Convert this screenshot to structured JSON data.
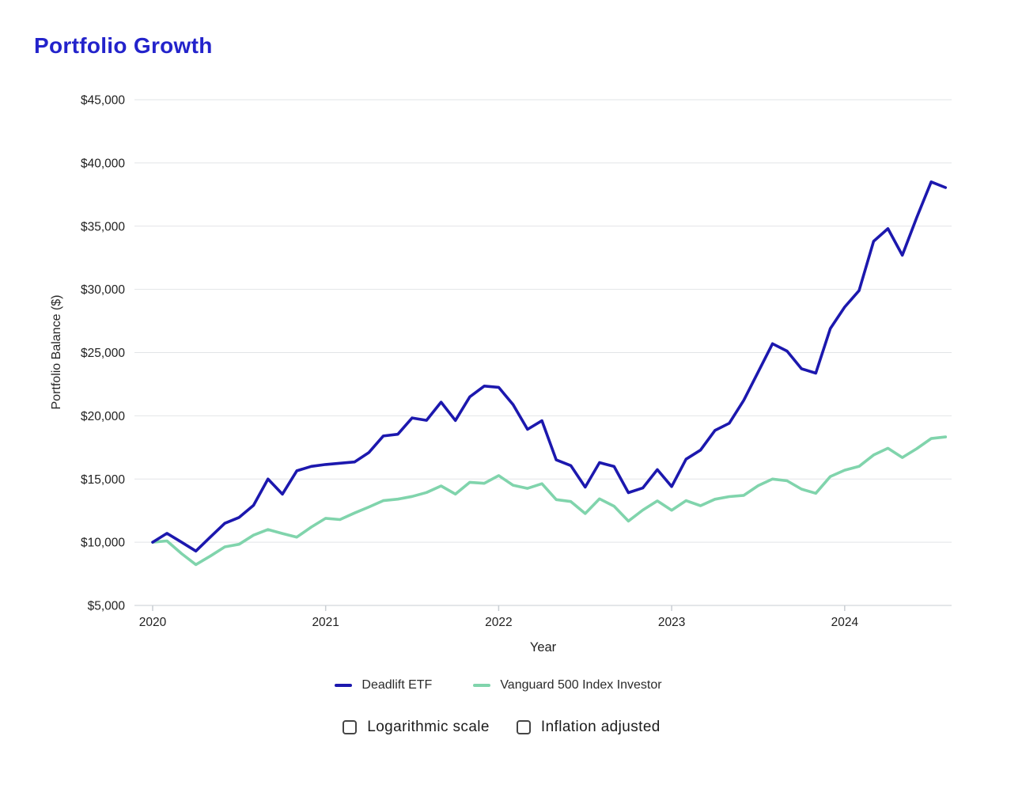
{
  "title": "Portfolio Growth",
  "colors": {
    "title": "#2323cb",
    "grid": "#e2e4e7",
    "axis": "#c9ced3",
    "tick_text": "#212121"
  },
  "legend": {
    "items": [
      {
        "label": "Deadlift ETF",
        "color": "#1c18ae"
      },
      {
        "label": "Vanguard 500 Index Investor",
        "color": "#80d4ac"
      }
    ]
  },
  "controls": {
    "items": [
      {
        "label": "Logarithmic scale",
        "checked": false
      },
      {
        "label": "Inflation adjusted",
        "checked": false
      }
    ]
  },
  "chart_data": {
    "type": "line",
    "title": "Portfolio Growth",
    "xlabel": "Year",
    "ylabel": "Portfolio Balance ($)",
    "xlim": [
      2019.895,
      2024.618
    ],
    "ylim": [
      5000,
      45000
    ],
    "grid": "horizontal",
    "legend_position": "bottom",
    "yticks": [
      {
        "value": 5000,
        "label": "$5,000"
      },
      {
        "value": 10000,
        "label": "$10,000"
      },
      {
        "value": 15000,
        "label": "$15,000"
      },
      {
        "value": 20000,
        "label": "$20,000"
      },
      {
        "value": 25000,
        "label": "$25,000"
      },
      {
        "value": 30000,
        "label": "$30,000"
      },
      {
        "value": 35000,
        "label": "$35,000"
      },
      {
        "value": 40000,
        "label": "$40,000"
      },
      {
        "value": 45000,
        "label": "$45,000"
      }
    ],
    "xticks": [
      {
        "value": 2020,
        "label": "2020"
      },
      {
        "value": 2021,
        "label": "2021"
      },
      {
        "value": 2022,
        "label": "2022"
      },
      {
        "value": 2023,
        "label": "2023"
      },
      {
        "value": 2024,
        "label": "2024"
      }
    ],
    "x": [
      2020.0,
      2020.083,
      2020.167,
      2020.25,
      2020.333,
      2020.417,
      2020.5,
      2020.583,
      2020.667,
      2020.75,
      2020.833,
      2020.917,
      2021.0,
      2021.083,
      2021.167,
      2021.25,
      2021.333,
      2021.417,
      2021.5,
      2021.583,
      2021.667,
      2021.75,
      2021.833,
      2021.917,
      2022.0,
      2022.083,
      2022.167,
      2022.25,
      2022.333,
      2022.417,
      2022.5,
      2022.583,
      2022.667,
      2022.75,
      2022.833,
      2022.917,
      2023.0,
      2023.083,
      2023.167,
      2023.25,
      2023.333,
      2023.417,
      2023.5,
      2023.583,
      2023.667,
      2023.75,
      2023.833,
      2023.917,
      2024.0,
      2024.083,
      2024.167,
      2024.25,
      2024.333,
      2024.417,
      2024.5,
      2024.583
    ],
    "series": [
      {
        "name": "Deadlift ETF",
        "color": "#1c18ae",
        "values": [
          10000,
          10700,
          10000,
          9300,
          10400,
          11500,
          11960,
          12920,
          15000,
          13800,
          15650,
          16000,
          16150,
          16250,
          16350,
          17100,
          18400,
          18540,
          19830,
          19640,
          21080,
          19630,
          21500,
          22350,
          22250,
          20890,
          18930,
          19610,
          16510,
          16060,
          14360,
          16300,
          15990,
          13920,
          14290,
          15740,
          14400,
          16570,
          17290,
          18840,
          19410,
          21230,
          23470,
          25700,
          25120,
          23720,
          23370,
          26900,
          28600,
          29900,
          33800,
          34800,
          32700,
          35700,
          38500,
          38050
        ]
      },
      {
        "name": "Vanguard 500 Index Investor",
        "color": "#80d4ac",
        "values": [
          10000,
          10100,
          9100,
          8230,
          8900,
          9630,
          9840,
          10560,
          11000,
          10690,
          10400,
          11200,
          11890,
          11790,
          12310,
          12790,
          13290,
          13410,
          13620,
          13930,
          14450,
          13810,
          14740,
          14660,
          15270,
          14510,
          14260,
          14630,
          13370,
          13220,
          12270,
          13430,
          12850,
          11670,
          12540,
          13270,
          12530,
          13290,
          12890,
          13400,
          13610,
          13710,
          14480,
          15000,
          14860,
          14200,
          13870,
          15200,
          15700,
          16000,
          16900,
          17430,
          16700,
          17400,
          18200,
          18330
        ]
      }
    ]
  }
}
